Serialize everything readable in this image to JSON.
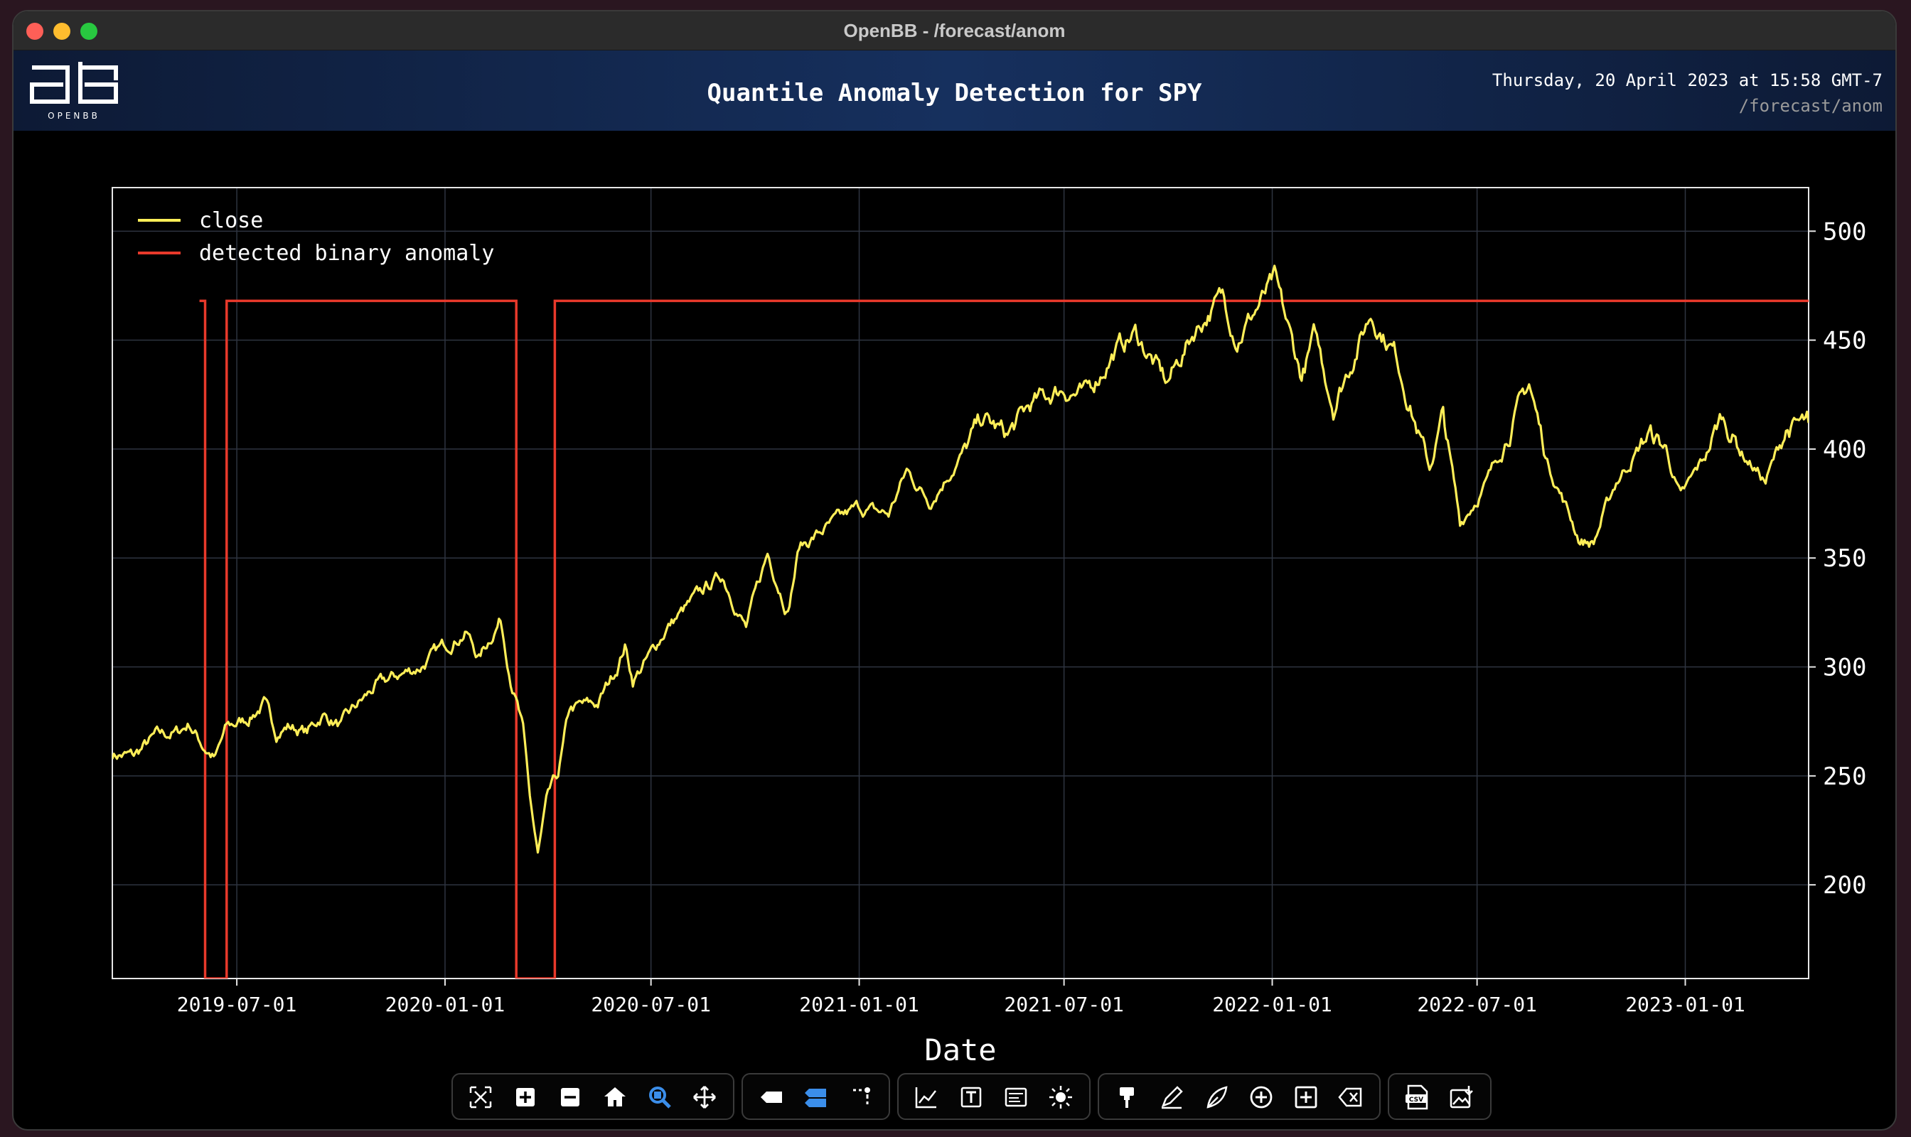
{
  "window": {
    "title": "OpenBB - /forecast/anom"
  },
  "header": {
    "logo_text": "OPENBB",
    "title": "Quantile Anomaly Detection for SPY",
    "datetime": "Thursday, 20 April 2023 at 15:58 GMT-7",
    "command": "/forecast/anom"
  },
  "colors": {
    "background": "#000000",
    "close_line": "#ffee58",
    "anomaly_line": "#e8392b",
    "grid": "#2e3440",
    "header_bg": "#16305e"
  },
  "chart_data": {
    "type": "line",
    "title": "Quantile Anomaly Detection for SPY",
    "xlabel": "Date",
    "ylabel": "",
    "x_range": [
      "2019-03-13",
      "2023-04-20"
    ],
    "ylim": [
      157,
      520
    ],
    "yticks": [
      200,
      250,
      300,
      350,
      400,
      450,
      500
    ],
    "y_axis_side": "right",
    "xticks": [
      "2019-07-01",
      "2020-01-01",
      "2020-07-01",
      "2021-01-01",
      "2021-07-01",
      "2022-01-01",
      "2022-07-01",
      "2023-01-01"
    ],
    "grid": true,
    "legend": "top-left",
    "series": [
      {
        "name": "close",
        "color": "#ffee58",
        "points": [
          [
            "2019-03-13",
            260
          ],
          [
            "2019-04-01",
            259
          ],
          [
            "2019-04-20",
            268
          ],
          [
            "2019-05-10",
            270
          ],
          [
            "2019-05-20",
            274
          ],
          [
            "2019-06-01",
            264
          ],
          [
            "2019-06-12",
            258
          ],
          [
            "2019-06-22",
            272
          ],
          [
            "2019-07-10",
            276
          ],
          [
            "2019-07-25",
            283
          ],
          [
            "2019-08-05",
            270
          ],
          [
            "2019-08-15",
            273
          ],
          [
            "2019-09-01",
            270
          ],
          [
            "2019-09-15",
            278
          ],
          [
            "2019-10-01",
            273
          ],
          [
            "2019-10-15",
            282
          ],
          [
            "2019-11-01",
            291
          ],
          [
            "2019-11-20",
            296
          ],
          [
            "2019-12-10",
            300
          ],
          [
            "2020-01-01",
            310
          ],
          [
            "2020-01-20",
            316
          ],
          [
            "2020-01-31",
            304
          ],
          [
            "2020-02-19",
            322
          ],
          [
            "2020-02-28",
            296
          ],
          [
            "2020-03-05",
            283
          ],
          [
            "2020-03-10",
            270
          ],
          [
            "2020-03-16",
            240
          ],
          [
            "2020-03-23",
            213
          ],
          [
            "2020-04-01",
            240
          ],
          [
            "2020-04-10",
            250
          ],
          [
            "2020-04-20",
            280
          ],
          [
            "2020-04-30",
            282
          ],
          [
            "2020-05-15",
            283
          ],
          [
            "2020-06-01",
            300
          ],
          [
            "2020-06-08",
            310
          ],
          [
            "2020-06-15",
            294
          ],
          [
            "2020-06-30",
            305
          ],
          [
            "2020-07-15",
            318
          ],
          [
            "2020-08-01",
            327
          ],
          [
            "2020-08-20",
            337
          ],
          [
            "2020-09-02",
            342
          ],
          [
            "2020-09-10",
            333
          ],
          [
            "2020-09-23",
            318
          ],
          [
            "2020-10-12",
            352
          ],
          [
            "2020-10-30",
            326
          ],
          [
            "2020-11-09",
            355
          ],
          [
            "2020-12-01",
            363
          ],
          [
            "2020-12-31",
            373
          ],
          [
            "2021-01-27",
            370
          ],
          [
            "2021-02-12",
            390
          ],
          [
            "2021-03-04",
            376
          ],
          [
            "2021-03-31",
            396
          ],
          [
            "2021-04-20",
            414
          ],
          [
            "2021-05-12",
            406
          ],
          [
            "2021-06-01",
            420
          ],
          [
            "2021-06-30",
            428
          ],
          [
            "2021-07-19",
            424
          ],
          [
            "2021-08-15",
            445
          ],
          [
            "2021-09-02",
            453
          ],
          [
            "2021-09-30",
            430
          ],
          [
            "2021-10-25",
            455
          ],
          [
            "2021-11-18",
            470
          ],
          [
            "2021-12-01",
            451
          ],
          [
            "2022-01-03",
            477
          ],
          [
            "2022-01-27",
            433
          ],
          [
            "2022-02-08",
            452
          ],
          [
            "2022-02-24",
            420
          ],
          [
            "2022-03-29",
            462
          ],
          [
            "2022-04-20",
            444
          ],
          [
            "2022-05-20",
            390
          ],
          [
            "2022-06-01",
            415
          ],
          [
            "2022-06-16",
            366
          ],
          [
            "2022-07-10",
            385
          ],
          [
            "2022-08-16",
            430
          ],
          [
            "2022-09-01",
            395
          ],
          [
            "2022-09-30",
            358
          ],
          [
            "2022-10-12",
            357
          ],
          [
            "2022-11-01",
            385
          ],
          [
            "2022-11-30",
            407
          ],
          [
            "2022-12-15",
            400
          ],
          [
            "2022-12-28",
            377
          ],
          [
            "2023-01-20",
            398
          ],
          [
            "2023-02-02",
            415
          ],
          [
            "2023-02-24",
            396
          ],
          [
            "2023-03-13",
            385
          ],
          [
            "2023-03-31",
            409
          ],
          [
            "2023-04-20",
            412
          ]
        ]
      },
      {
        "name": "detected binary anomaly",
        "color": "#e8392b",
        "high": 468,
        "low": 157,
        "points": [
          [
            "2019-05-29",
            468
          ],
          [
            "2019-06-03",
            468
          ],
          [
            "2019-06-03",
            157
          ],
          [
            "2019-06-22",
            157
          ],
          [
            "2019-06-22",
            468
          ],
          [
            "2020-03-04",
            468
          ],
          [
            "2020-03-04",
            157
          ],
          [
            "2020-04-07",
            157
          ],
          [
            "2020-04-07",
            468
          ],
          [
            "2023-04-20",
            468
          ]
        ]
      }
    ]
  },
  "toolbar": {
    "groups": [
      [
        "autoscale-icon",
        "zoom-in-icon",
        "zoom-out-icon",
        "reset-axes-icon",
        "zoom-icon",
        "pan-icon"
      ],
      [
        "hover-closest-icon",
        "hover-compare-icon",
        "spike-lines-icon"
      ],
      [
        "add-chart-icon",
        "add-text-icon",
        "change-title-icon",
        "toggle-theme-icon"
      ],
      [
        "draw-line-icon",
        "draw-open-path-icon",
        "draw-closed-path-icon",
        "draw-circle-icon",
        "draw-rect-icon",
        "erase-shape-icon"
      ],
      [
        "export-csv-icon",
        "download-image-icon"
      ]
    ]
  }
}
